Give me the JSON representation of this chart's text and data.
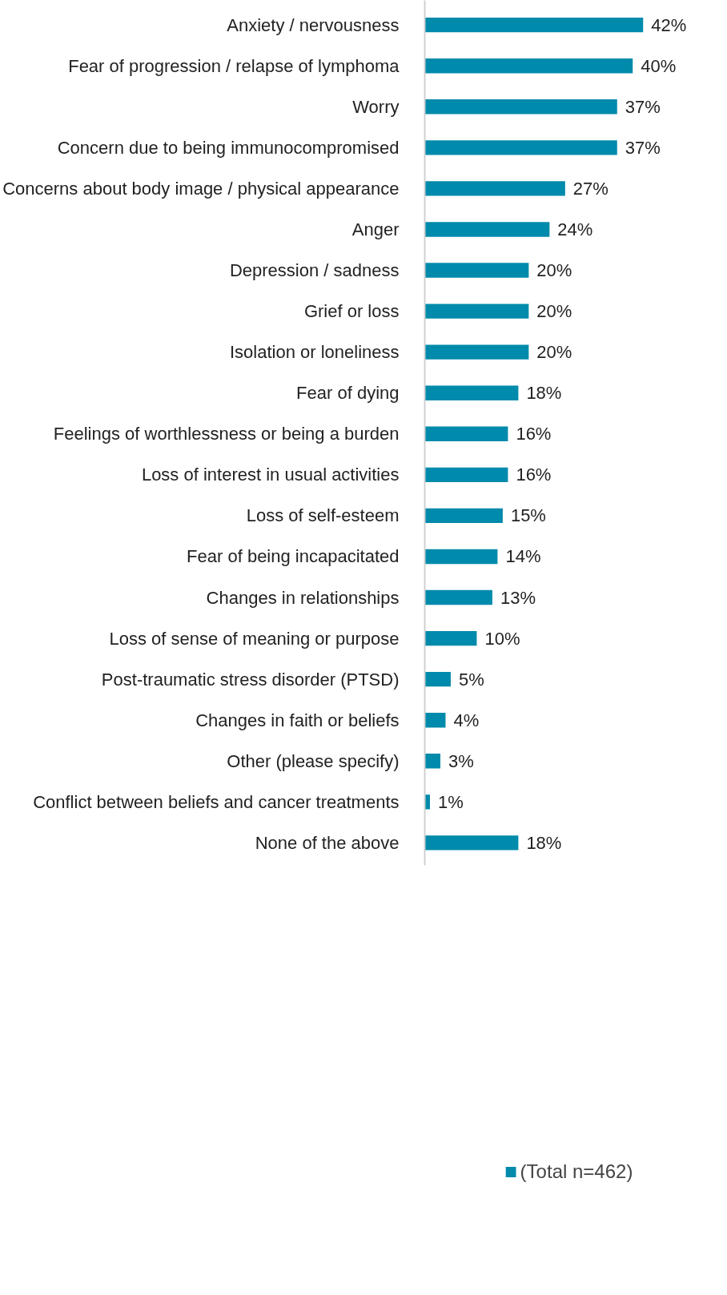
{
  "chart_data": {
    "type": "bar",
    "orientation": "horizontal",
    "categories": [
      "Anxiety / nervousness",
      "Fear of progression / relapse of lymphoma",
      "Worry",
      "Concern due to being immunocompromised",
      "Concerns about body image / physical appearance",
      "Anger",
      "Depression / sadness",
      "Grief or loss",
      "Isolation or loneliness",
      "Fear of dying",
      "Feelings of worthlessness or being a burden",
      "Loss of interest in usual activities",
      "Loss of self-esteem",
      "Fear of being incapacitated",
      "Changes in relationships",
      "Loss of sense of meaning or purpose",
      "Post-traumatic stress disorder (PTSD)",
      "Changes in faith or beliefs",
      "Other (please specify)",
      "Conflict between beliefs and cancer treatments",
      "None of the above"
    ],
    "series": [
      {
        "name": "(Total n=462)",
        "color": "#008aab",
        "values": [
          42,
          40,
          37,
          37,
          27,
          24,
          20,
          20,
          20,
          18,
          16,
          16,
          15,
          14,
          13,
          10,
          5,
          4,
          3,
          1,
          18
        ],
        "value_labels": [
          "42%",
          "40%",
          "37%",
          "37%",
          "27%",
          "24%",
          "20%",
          "20%",
          "20%",
          "18%",
          "16%",
          "16%",
          "15%",
          "14%",
          "13%",
          "10%",
          "5%",
          "4%",
          "3%",
          "1%",
          "18%"
        ]
      }
    ],
    "legend": "bottom",
    "grid": false
  }
}
